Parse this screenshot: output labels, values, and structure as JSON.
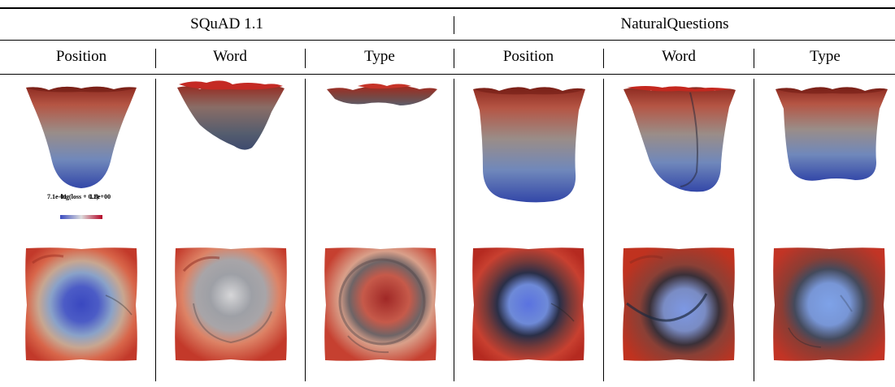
{
  "header": {
    "group_left": "SQuAD 1.1",
    "group_right": "NaturalQuestions"
  },
  "columns": [
    "Position",
    "Word",
    "Type",
    "Position",
    "Word",
    "Type"
  ],
  "legend": {
    "title": "log(loss + 0.1)",
    "min_label": "7.1e-01",
    "max_label": "1.8e+00",
    "colormap": [
      "#3b4cc0",
      "#dddddd",
      "#b40426"
    ]
  }
}
